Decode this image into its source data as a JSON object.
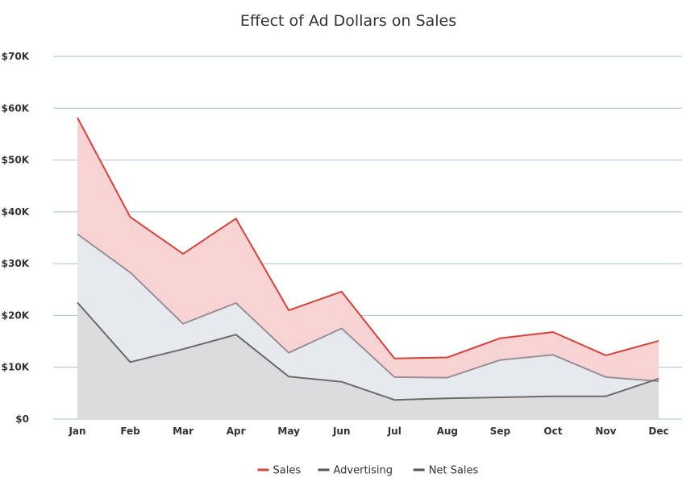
{
  "chart_data": {
    "type": "area",
    "title": "Effect of Ad Dollars on Sales",
    "xlabel": "",
    "ylabel": "",
    "categories": [
      "Jan",
      "Feb",
      "Mar",
      "Apr",
      "May",
      "Jun",
      "Jul",
      "Aug",
      "Sep",
      "Oct",
      "Nov",
      "Dec"
    ],
    "ylim": [
      0,
      70000
    ],
    "yticks": [
      0,
      10000,
      20000,
      30000,
      40000,
      50000,
      60000,
      70000
    ],
    "ytick_labels": [
      "$0",
      "$10K",
      "$20K",
      "$30K",
      "$40K",
      "$50K",
      "$60K",
      "$70K"
    ],
    "grid": true,
    "legend_position": "bottom-center",
    "series": [
      {
        "name": "Sales",
        "values": [
          58200,
          39000,
          31900,
          38700,
          21000,
          24600,
          11700,
          11900,
          15600,
          16800,
          12300,
          15100
        ],
        "line_color": "#d9413a",
        "fill_color": "#f8d3d4"
      },
      {
        "name": "Advertising",
        "values": [
          35700,
          28300,
          18400,
          22400,
          12800,
          17500,
          8100,
          8000,
          11400,
          12400,
          8100,
          7300
        ],
        "line_color": "#9a8f97",
        "legend_color": "#555555",
        "fill_color": "#e6eaee"
      },
      {
        "name": "Net Sales",
        "values": [
          22500,
          11000,
          13500,
          16300,
          8200,
          7200,
          3700,
          4000,
          4200,
          4400,
          4400,
          7800
        ],
        "line_color": "#6b6b6b",
        "legend_color": "#555555",
        "fill_color": "#dcdcde"
      }
    ]
  }
}
